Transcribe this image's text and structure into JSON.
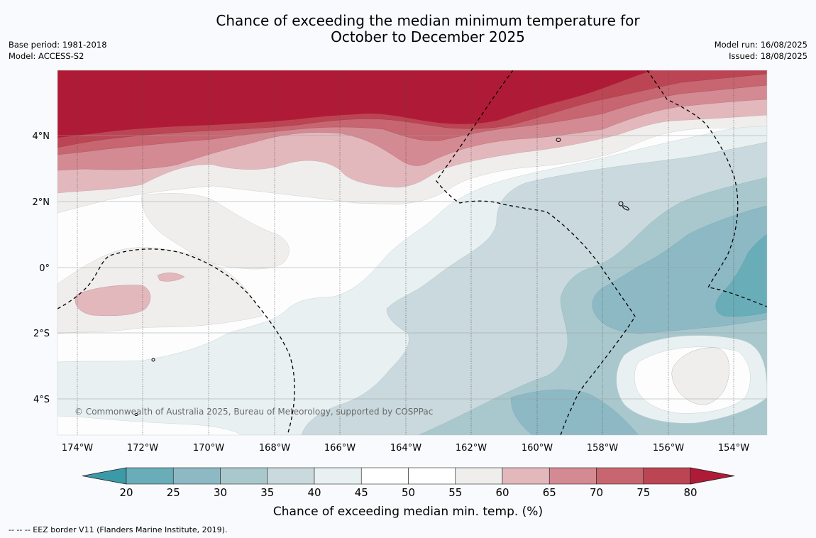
{
  "title_line1": "Chance of exceeding the median minimum temperature for",
  "title_line2": "October to December 2025",
  "meta": {
    "base_period": "Base period: 1981-2018",
    "model": "Model: ACCESS-S2",
    "model_run": "Model run: 16/08/2025",
    "issued": "Issued: 18/08/2025"
  },
  "map": {
    "lat_labels": [
      "4°N",
      "2°N",
      "0°",
      "2°S",
      "4°S"
    ],
    "lon_labels": [
      "174°W",
      "172°W",
      "170°W",
      "168°W",
      "166°W",
      "164°W",
      "162°W",
      "160°W",
      "158°W",
      "156°W",
      "154°W"
    ],
    "copyright": "© Commonwealth of Australia 2025, Bureau of Meteorology, supported by COSPPac",
    "grid": true,
    "eez_border_style": "dashed"
  },
  "colorbar": {
    "ticks": [
      "20",
      "25",
      "30",
      "35",
      "40",
      "45",
      "50",
      "55",
      "60",
      "65",
      "70",
      "75",
      "80"
    ],
    "colors": [
      "#3b9aa8",
      "#69adb8",
      "#8db9c5",
      "#a9c8ce",
      "#c9d9de",
      "#e9f0f1",
      "#ffffff",
      "#ffffff",
      "#efeeec",
      "#e2b8bd",
      "#d48a93",
      "#c76670",
      "#bc4554",
      "#af1b36"
    ],
    "label": "Chance of exceeding median min. temp. (%)"
  },
  "footer": "-- -- -- EEZ border V11 (Flanders Marine Institute, 2019)."
}
